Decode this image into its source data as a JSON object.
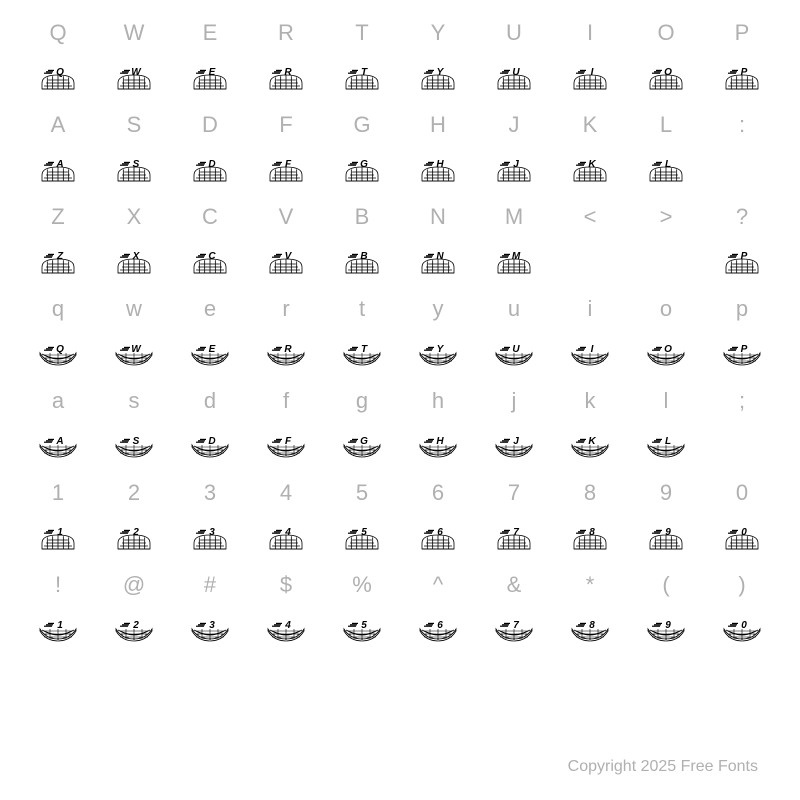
{
  "footer": "Copyright 2025 Free Fonts",
  "glyph_style": {
    "stroke": "#000000",
    "fill_letter": "#000000",
    "letter_font": "italic 700 9px Arial",
    "grid_rows": 3,
    "grid_cols": 6
  },
  "rows": [
    {
      "type": "label",
      "cells": [
        "Q",
        "W",
        "E",
        "R",
        "T",
        "Y",
        "U",
        "I",
        "O",
        "P"
      ]
    },
    {
      "type": "glyph",
      "variant": "dome",
      "cells": [
        "Q",
        "W",
        "E",
        "R",
        "T",
        "Y",
        "U",
        "I",
        "O",
        "P"
      ]
    },
    {
      "type": "label",
      "cells": [
        "A",
        "S",
        "D",
        "F",
        "G",
        "H",
        "J",
        "K",
        "L",
        ":"
      ]
    },
    {
      "type": "glyph",
      "variant": "dome",
      "cells": [
        "A",
        "S",
        "D",
        "F",
        "G",
        "H",
        "J",
        "K",
        "L",
        ""
      ]
    },
    {
      "type": "label",
      "cells": [
        "Z",
        "X",
        "C",
        "V",
        "B",
        "N",
        "M",
        "<",
        ">",
        "?"
      ]
    },
    {
      "type": "glyph",
      "variant": "dome",
      "cells": [
        "Z",
        "X",
        "C",
        "V",
        "B",
        "N",
        "M",
        "",
        "",
        "P"
      ]
    },
    {
      "type": "label",
      "cells": [
        "q",
        "w",
        "e",
        "r",
        "t",
        "y",
        "u",
        "i",
        "o",
        "p"
      ]
    },
    {
      "type": "glyph",
      "variant": "tray",
      "cells": [
        "Q",
        "W",
        "E",
        "R",
        "T",
        "Y",
        "U",
        "I",
        "O",
        "P"
      ]
    },
    {
      "type": "label",
      "cells": [
        "a",
        "s",
        "d",
        "f",
        "g",
        "h",
        "j",
        "k",
        "l",
        ";"
      ]
    },
    {
      "type": "glyph",
      "variant": "tray",
      "cells": [
        "A",
        "S",
        "D",
        "F",
        "G",
        "H",
        "J",
        "K",
        "L",
        ""
      ]
    },
    {
      "type": "label",
      "cells": [
        "1",
        "2",
        "3",
        "4",
        "5",
        "6",
        "7",
        "8",
        "9",
        "0"
      ]
    },
    {
      "type": "glyph",
      "variant": "dome",
      "cells": [
        "1",
        "2",
        "3",
        "4",
        "5",
        "6",
        "7",
        "8",
        "9",
        "0"
      ]
    },
    {
      "type": "label",
      "cells": [
        "!",
        "@",
        "#",
        "$",
        "%",
        "^",
        "&",
        "*",
        "(",
        ")"
      ]
    },
    {
      "type": "glyph",
      "variant": "tray",
      "cells": [
        "1",
        "2",
        "3",
        "4",
        "5",
        "6",
        "7",
        "8",
        "9",
        "0"
      ]
    }
  ]
}
